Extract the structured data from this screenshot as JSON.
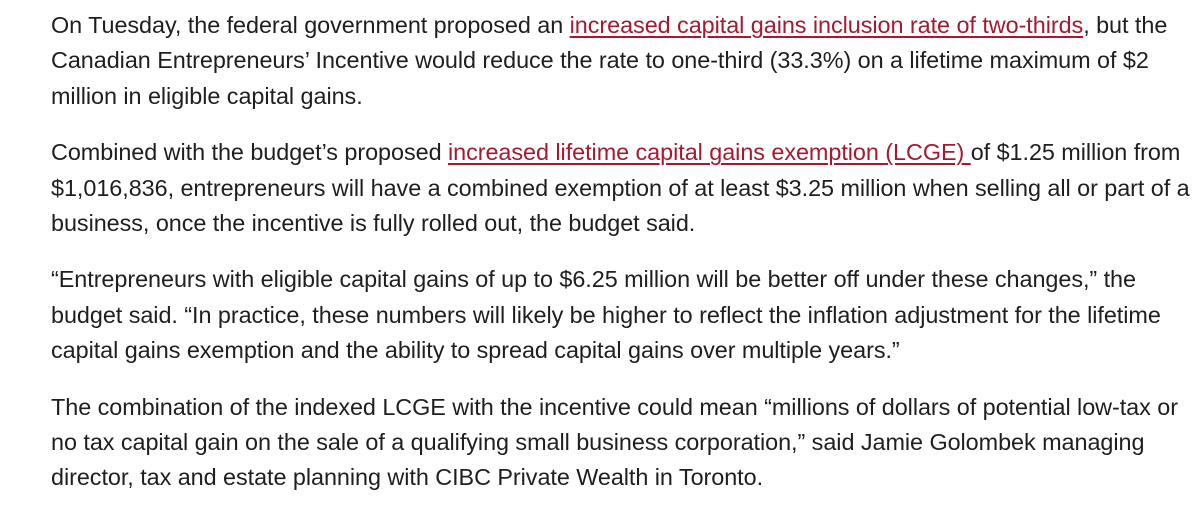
{
  "article": {
    "paragraphs": [
      {
        "lines": [
          {
            "before": "On Tuesday, the federal government proposed an ",
            "link": "increased capital gains inclusion rate of two-thirds",
            "after": ", but the"
          },
          {
            "text": "Canadian Entrepreneurs’ Incentive would reduce the rate to one-third (33.3%) on a lifetime maximum of $2"
          },
          {
            "text": "million in eligible capital gains."
          }
        ]
      },
      {
        "lines": [
          {
            "before": "Combined with the budget’s proposed ",
            "link": "increased lifetime capital gains exemption (LCGE) ",
            "after": "of $1.25 million from"
          },
          {
            "text": "$1,016,836, entrepreneurs will have a combined exemption of at least $3.25 million when selling all or part of a"
          },
          {
            "text": "business, once the incentive is fully rolled out, the budget said."
          }
        ]
      },
      {
        "lines": [
          {
            "text": "“Entrepreneurs with eligible capital gains of up to $6.25 million will be better off under these changes,” the"
          },
          {
            "text": "budget said. “In practice, these numbers will likely be higher to reflect the inflation adjustment for the lifetime"
          },
          {
            "text": "capital gains exemption and the ability to spread capital gains over multiple years.”"
          }
        ]
      },
      {
        "lines": [
          {
            "text": "The combination of the indexed LCGE with the incentive could mean “millions of dollars of potential low-tax or"
          },
          {
            "text": "no tax capital gain on the sale of a qualifying small business corporation,” said Jamie Golombek managing"
          },
          {
            "text": "director, tax and estate planning with CIBC Private Wealth in Toronto."
          }
        ]
      }
    ]
  }
}
